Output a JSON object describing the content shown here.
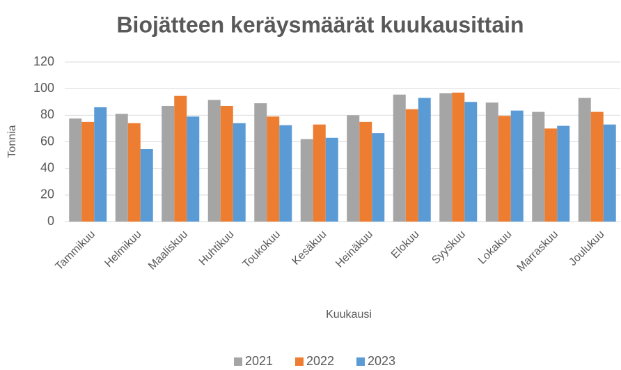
{
  "chart_data": {
    "type": "bar",
    "title": "Biojätteen keräysmäärät kuukausittain",
    "x_label": "Kuukausi",
    "y_label": "Tonnia",
    "categories": [
      "Tammikuu",
      "Helmikuu",
      "Maaliskuu",
      "Huhtikuu",
      "Toukokuu",
      "Kesäkuu",
      "Heinäkuu",
      "Elokuu",
      "Syyskuu",
      "Lokakuu",
      "Marraskuu",
      "Joulukuu"
    ],
    "series": [
      {
        "name": "2021",
        "color": "#a5a5a5",
        "values": [
          77.5,
          81,
          87,
          91.5,
          89,
          62,
          80,
          95.5,
          96.5,
          89.5,
          82.5,
          93
        ]
      },
      {
        "name": "2022",
        "color": "#ed7d31",
        "values": [
          75,
          74,
          94.5,
          87,
          79,
          73,
          75,
          84.5,
          97,
          79.5,
          70,
          82.5
        ]
      },
      {
        "name": "2023",
        "color": "#5b9bd5",
        "values": [
          86,
          54.5,
          79,
          74,
          72.5,
          63,
          66.5,
          93,
          90,
          83.5,
          72,
          73
        ]
      }
    ],
    "ylim": [
      0,
      120
    ],
    "yticks": [
      0,
      20,
      40,
      60,
      80,
      100,
      120
    ],
    "grid": true,
    "legend": "bottom"
  }
}
